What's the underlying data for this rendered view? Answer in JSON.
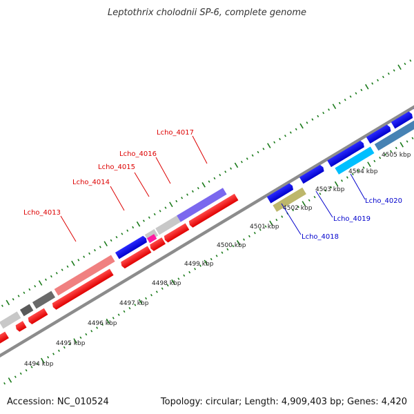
{
  "title": "Leptothrix cholodnii SP-6, complete genome",
  "footer": {
    "accession": "Accession: NC_010524",
    "summary": "Topology: circular; Length: 4,909,403 bp; Genes: 4,420"
  },
  "ticks": [
    {
      "label": "4494 kbp"
    },
    {
      "label": "4495 kbp"
    },
    {
      "label": "4496 kbp"
    },
    {
      "label": "4497 kbp"
    },
    {
      "label": "4498 kbp"
    },
    {
      "label": "4499 kbp"
    },
    {
      "label": "4500 kbp"
    },
    {
      "label": "4501 kbp"
    },
    {
      "label": "4502 kbp"
    },
    {
      "label": "4503 kbp"
    },
    {
      "label": "4504 kbp"
    },
    {
      "label": "4505 kbp"
    }
  ],
  "gene_labels": [
    {
      "text": "Lcho_4013",
      "color": "#dd0000"
    },
    {
      "text": "Lcho_4014",
      "color": "#dd0000"
    },
    {
      "text": "Lcho_4015",
      "color": "#dd0000"
    },
    {
      "text": "Lcho_4016",
      "color": "#dd0000"
    },
    {
      "text": "Lcho_4017",
      "color": "#dd0000"
    },
    {
      "text": "Lcho_4018",
      "color": "#0000cc"
    },
    {
      "text": "Lcho_4019",
      "color": "#0000cc"
    },
    {
      "text": "Lcho_4020",
      "color": "#0000cc"
    }
  ],
  "colors": {
    "backbone": "#8c8c8c",
    "tick": "#1a7a1a",
    "reverse_strand": "#ff0000",
    "forward_strand": "#0000ee"
  }
}
